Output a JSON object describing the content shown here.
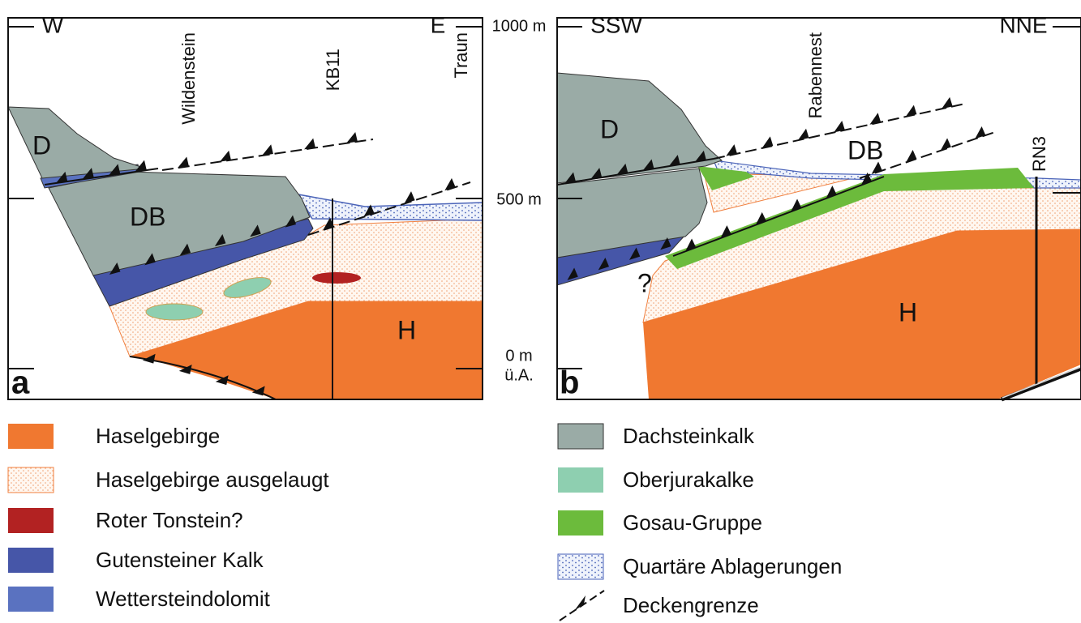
{
  "panel_a": {
    "left_direction": "W",
    "right_direction": "E",
    "locations": [
      "Wildenstein",
      "KB11",
      "Traun"
    ],
    "units": [
      "D",
      "DB",
      "H"
    ],
    "panel_label": "a"
  },
  "elevation_axis": {
    "labels": [
      "1000 m",
      "500 m",
      "0 m",
      "ü.A."
    ]
  },
  "panel_b": {
    "left_direction": "SSW",
    "right_direction": "NNE",
    "locations": [
      "Rabennest",
      "RN3"
    ],
    "units": [
      "D",
      "DB",
      "H"
    ],
    "question": "?",
    "panel_label": "b"
  },
  "legend": {
    "left": [
      "Haselgebirge",
      "Haselgebirge ausgelaugt",
      "Roter Tonstein?",
      "Gutensteiner Kalk",
      "Wettersteindolomit"
    ],
    "right": [
      "Dachsteinkalk",
      "Oberjurakalke",
      "Gosau-Gruppe",
      "Quartäre Ablagerungen",
      "Deckengrenze"
    ]
  }
}
